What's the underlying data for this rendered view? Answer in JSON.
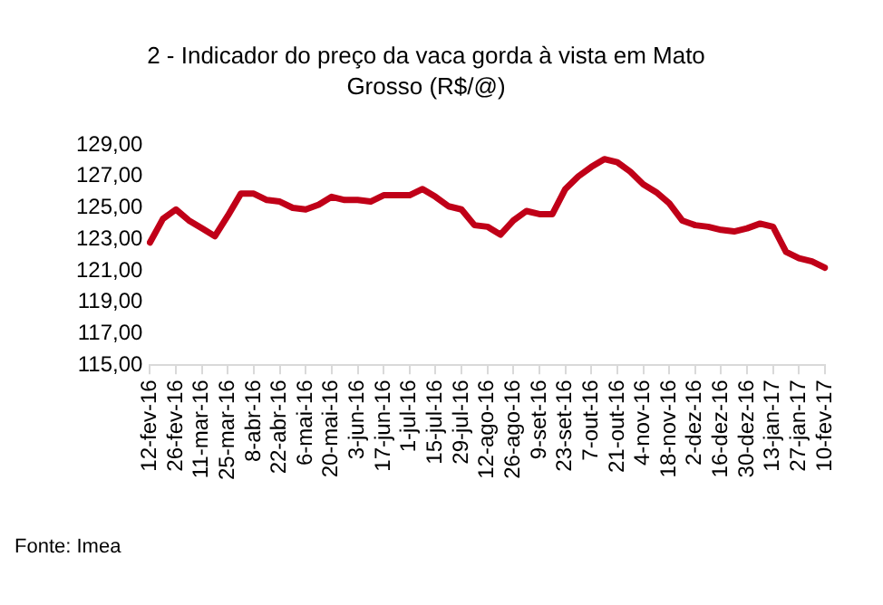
{
  "chart_data": {
    "type": "line",
    "title": "2 - Indicador do preço da vaca gorda à vista em Mato Grosso (R$/@)",
    "categories": [
      "12-fev-16",
      null,
      "26-fev-16",
      null,
      "11-mar-16",
      null,
      "25-mar-16",
      null,
      "8-abr-16",
      null,
      "22-abr-16",
      null,
      "6-mai-16",
      null,
      "20-mai-16",
      null,
      "3-jun-16",
      null,
      "17-jun-16",
      null,
      "1-jul-16",
      null,
      "15-jul-16",
      null,
      "29-jul-16",
      null,
      "12-ago-16",
      null,
      "26-ago-16",
      null,
      "9-set-16",
      null,
      "23-set-16",
      null,
      "7-out-16",
      null,
      "21-out-16",
      null,
      "4-nov-16",
      null,
      "18-nov-16",
      null,
      "2-dez-16",
      null,
      "16-dez-16",
      null,
      "30-dez-16",
      null,
      "13-jan-17",
      null,
      "27-jan-17",
      null,
      "10-fev-17"
    ],
    "series": [
      {
        "color": "#c00018",
        "values": [
          122.8,
          124.3,
          124.9,
          124.2,
          123.7,
          123.2,
          124.5,
          125.9,
          125.9,
          125.5,
          125.4,
          125.0,
          124.9,
          125.2,
          125.7,
          125.5,
          125.5,
          125.4,
          125.8,
          125.8,
          125.8,
          126.2,
          125.7,
          125.1,
          124.9,
          123.9,
          123.8,
          123.3,
          124.2,
          124.8,
          124.6,
          124.6,
          126.2,
          127.0,
          127.6,
          128.1,
          127.9,
          127.3,
          126.5,
          126.0,
          125.3,
          124.2,
          123.9,
          123.8,
          123.6,
          123.5,
          123.7,
          124.0,
          123.8,
          122.2,
          121.8,
          121.6,
          121.2
        ]
      }
    ],
    "ylim": [
      115,
      129
    ],
    "yticks": [
      {
        "value": 115,
        "label": "115,00"
      },
      {
        "value": 117,
        "label": "117,00"
      },
      {
        "value": 119,
        "label": "119,00"
      },
      {
        "value": 121,
        "label": "121,00"
      },
      {
        "value": 123,
        "label": "123,00"
      },
      {
        "value": 125,
        "label": "125,00"
      },
      {
        "value": 127,
        "label": "127,00"
      },
      {
        "value": 129,
        "label": "129,00"
      }
    ],
    "annotations": [
      "Fonte: Imea"
    ]
  }
}
